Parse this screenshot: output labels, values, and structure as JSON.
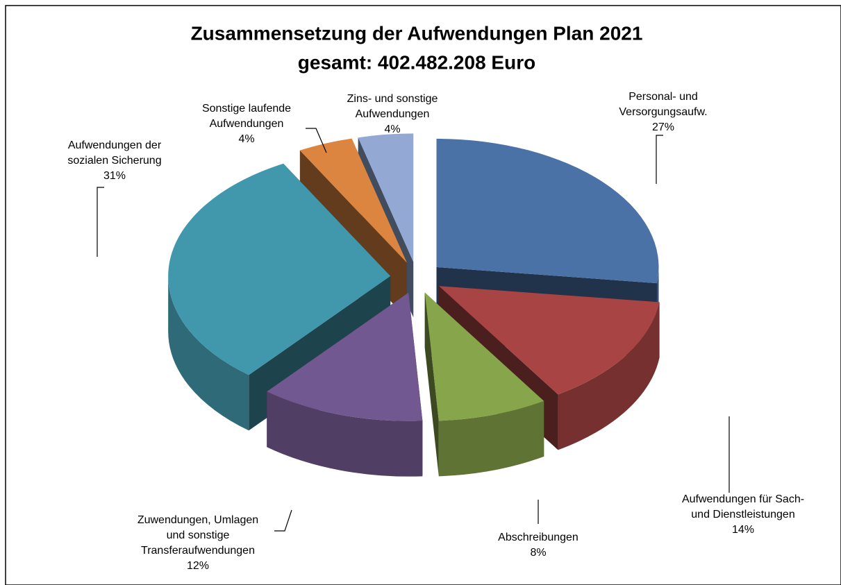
{
  "chart_data": {
    "type": "pie3d",
    "title": "Zusammensetzung der Aufwendungen Plan 2021",
    "subtitle": "gesamt: 402.482.208 Euro",
    "categories": [
      [
        "Personal- und",
        "Versorgungsaufw."
      ],
      [
        "Aufwendungen für Sach-",
        "und Dienstleistungen"
      ],
      [
        "Abschreibungen"
      ],
      [
        "Zuwendungen, Umlagen",
        "und sonstige",
        "Transferaufwendungen"
      ],
      [
        "Aufwendungen der",
        "sozialen Sicherung"
      ],
      [
        "Sonstige laufende",
        "Aufwendungen"
      ],
      [
        "Zins- und sonstige",
        "Aufwendungen"
      ]
    ],
    "values": [
      27,
      14,
      8,
      12,
      31,
      4,
      4
    ],
    "value_labels": [
      "27%",
      "14%",
      "8%",
      "12%",
      "31%",
      "4%",
      "4%"
    ],
    "colors": [
      "#4a72a6",
      "#a84444",
      "#87a54a",
      "#725890",
      "#4197ab",
      "#dc8540",
      "#93a9d4"
    ]
  }
}
